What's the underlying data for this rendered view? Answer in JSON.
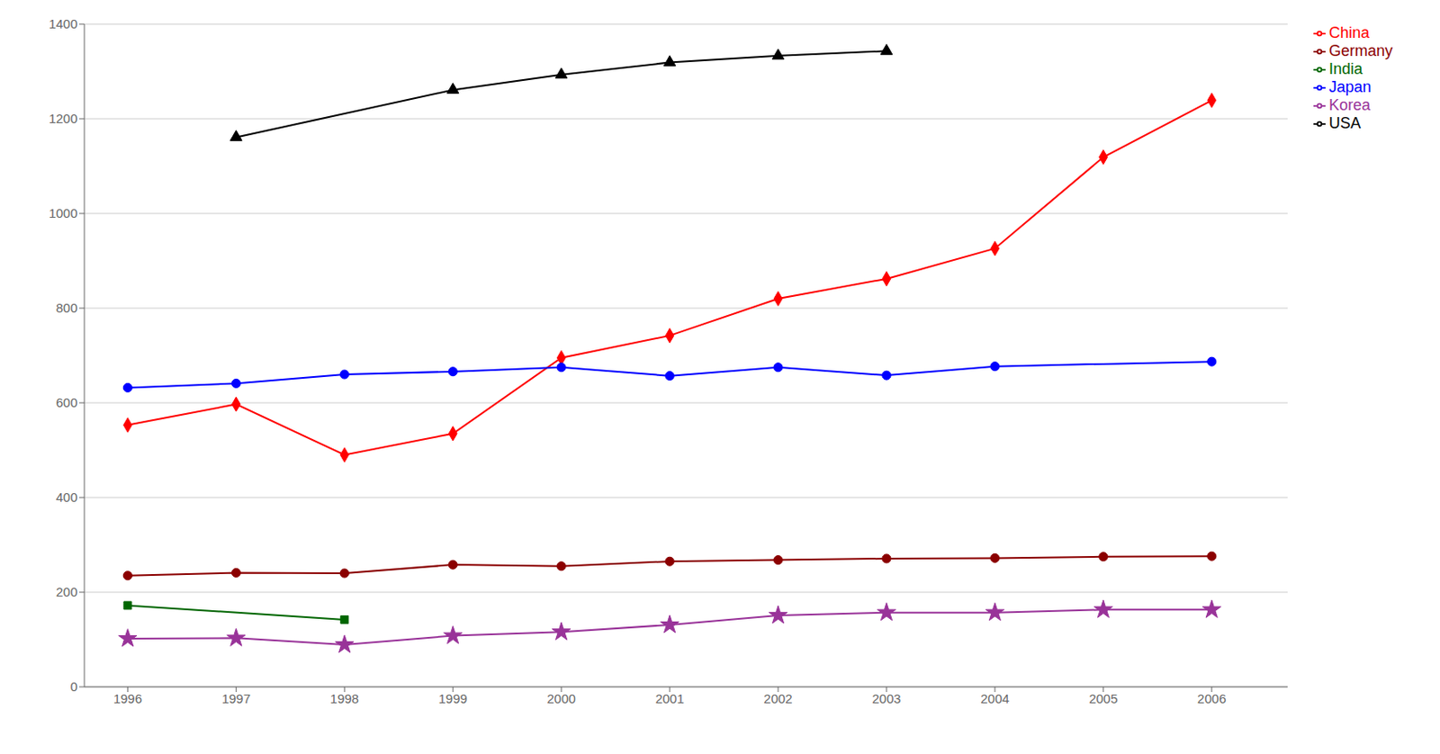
{
  "chart_data": {
    "type": "line",
    "series": [
      {
        "name": "China",
        "color": "#FF0000",
        "marker": "diamond",
        "x": [
          1996,
          1997,
          1998,
          1999,
          2000,
          2001,
          2002,
          2003,
          2004,
          2005,
          2006
        ],
        "values": [
          553,
          597,
          490,
          535,
          695,
          742,
          820,
          862,
          926,
          1119,
          1239
        ]
      },
      {
        "name": "India",
        "color": "#006600",
        "marker": "square",
        "x": [
          1996,
          1998
        ],
        "values": [
          172,
          142
        ]
      },
      {
        "name": "USA",
        "color": "#000000",
        "marker": "triangle",
        "x": [
          1997,
          1999,
          2000,
          2001,
          2002,
          2003
        ],
        "values": [
          1161,
          1261,
          1293,
          1319,
          1333,
          1343
        ]
      },
      {
        "name": "Japan",
        "color": "#0000FF",
        "marker": "circle",
        "x": [
          1996,
          1997,
          1998,
          1999,
          2000,
          2001,
          2002,
          2003,
          2004,
          2006
        ],
        "values": [
          632,
          641,
          660,
          666,
          675,
          657,
          675,
          658,
          677,
          687
        ]
      },
      {
        "name": "Korea",
        "color": "#993399",
        "marker": "star",
        "x": [
          1996,
          1997,
          1998,
          1999,
          2000,
          2001,
          2002,
          2003,
          2004,
          2005,
          2006
        ],
        "values": [
          102,
          103,
          89,
          108,
          116,
          131,
          151,
          157,
          157,
          163,
          163
        ]
      },
      {
        "name": "Germany",
        "color": "#8B0000",
        "marker": "circle",
        "x": [
          1996,
          1997,
          1998,
          1999,
          2000,
          2001,
          2002,
          2003,
          2004,
          2005,
          2006
        ],
        "values": [
          235,
          241,
          240,
          258,
          255,
          265,
          268,
          271,
          272,
          275,
          276
        ]
      }
    ],
    "xlim": [
      1995.6,
      2006.7
    ],
    "ylim": [
      0,
      1400
    ],
    "xticks": [
      1996,
      1997,
      1998,
      1999,
      2000,
      2001,
      2002,
      2003,
      2004,
      2005,
      2006
    ],
    "yticks": [
      0,
      200,
      400,
      600,
      800,
      1000,
      1200,
      1400
    ],
    "grid": "y",
    "legend": "right"
  }
}
